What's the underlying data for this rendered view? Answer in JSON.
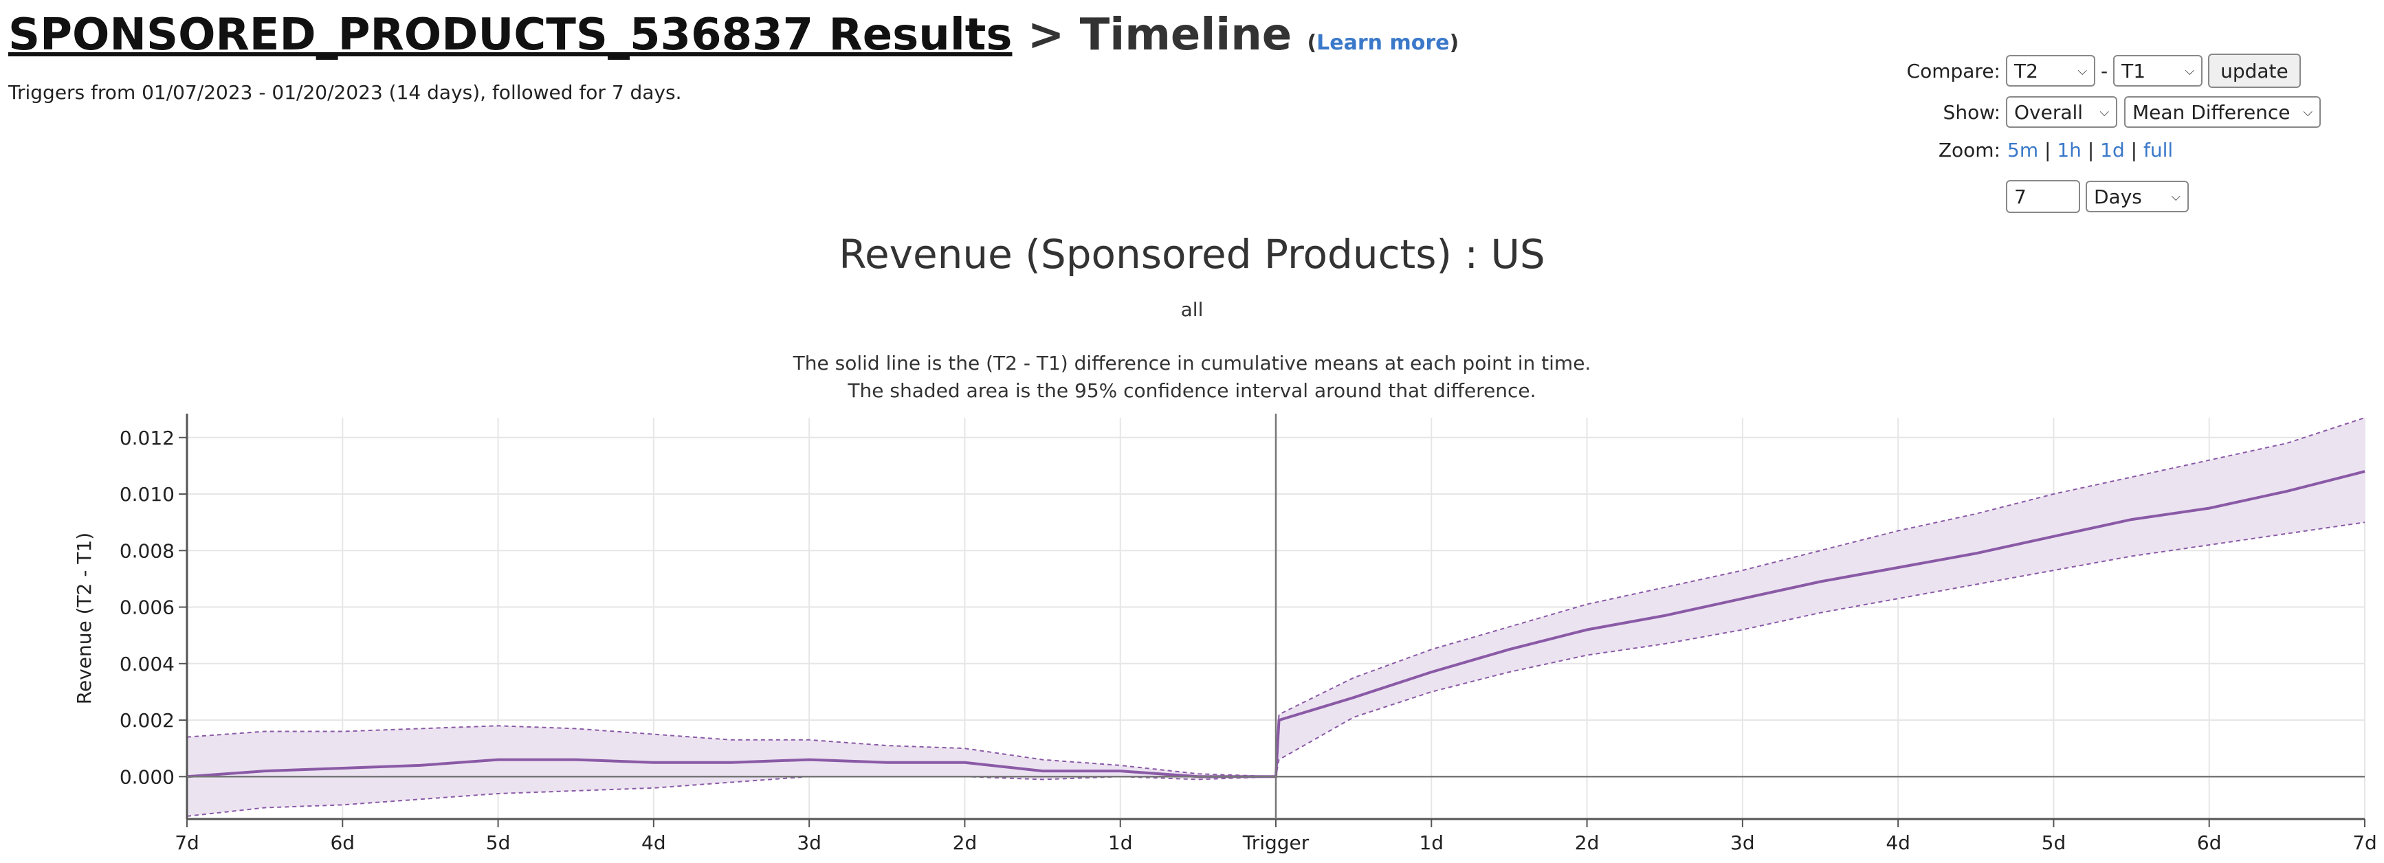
{
  "header": {
    "title_link": "SPONSORED_PRODUCTS_536837 Results",
    "title_rest": " > Timeline ",
    "learn_open": "(",
    "learn_more": "Learn more",
    "learn_close": ")",
    "subtitle": "Triggers from 01/07/2023 - 01/20/2023 (14 days), followed for 7 days."
  },
  "controls": {
    "compare_label": "Compare:",
    "compare_a": "T2",
    "compare_sep": "-",
    "compare_b": "T1",
    "update_label": "update",
    "show_label": "Show:",
    "show_scope": "Overall",
    "show_metric": "Mean Difference",
    "zoom_label": "Zoom:",
    "zoom_options": [
      "5m",
      "1h",
      "1d",
      "full"
    ],
    "zoom_sep": "|",
    "range_value": "7",
    "range_unit": "Days"
  },
  "chart_data": {
    "type": "line",
    "title": "Revenue (Sponsored Products) : US",
    "subtitle": "all",
    "description": [
      "The solid line is the (T2 - T1) difference in cumulative means at each point in time.",
      "The shaded area is the 95% confidence interval around that difference."
    ],
    "ylabel": "Revenue (T2 - T1)",
    "xlabel": "",
    "x_ticks": [
      "7d",
      "6d",
      "5d",
      "4d",
      "3d",
      "2d",
      "1d",
      "Trigger",
      "1d",
      "2d",
      "3d",
      "4d",
      "5d",
      "6d",
      "7d"
    ],
    "x_range_days": [
      -7,
      7
    ],
    "y_ticks": [
      0.0,
      0.002,
      0.004,
      0.006,
      0.008,
      0.01,
      0.012
    ],
    "ylim": [
      -0.0015,
      0.0127
    ],
    "grid": true,
    "colors": {
      "line": "#8a5aa6",
      "band": "#ece3f1",
      "band_edge": "#8a5aa6",
      "axis": "#555555",
      "grid": "#e6e6e6"
    },
    "series": [
      {
        "x": [
          -7,
          -6.5,
          -6,
          -5.5,
          -5,
          -4.5,
          -4,
          -3.5,
          -3,
          -2.5,
          -2,
          -1.5,
          -1,
          -0.5,
          0,
          0.02,
          0.5,
          1,
          1.5,
          2,
          2.5,
          3,
          3.5,
          4,
          4.5,
          5,
          5.5,
          6,
          6.5,
          7
        ],
        "y": [
          0.0,
          0.0002,
          0.0003,
          0.0004,
          0.0006,
          0.0006,
          0.0005,
          0.0005,
          0.0006,
          0.0005,
          0.0005,
          0.0002,
          0.0002,
          0.0,
          0.0,
          0.002,
          0.0028,
          0.0037,
          0.0045,
          0.0052,
          0.0057,
          0.0063,
          0.0069,
          0.0074,
          0.0079,
          0.0085,
          0.0091,
          0.0095,
          0.0101,
          0.0108
        ],
        "upper": [
          0.0014,
          0.0016,
          0.0016,
          0.0017,
          0.0018,
          0.0017,
          0.0015,
          0.0013,
          0.0013,
          0.0011,
          0.001,
          0.0006,
          0.0004,
          0.0001,
          0.0,
          0.0022,
          0.0035,
          0.0045,
          0.0053,
          0.0061,
          0.0067,
          0.0073,
          0.008,
          0.0087,
          0.0093,
          0.01,
          0.0106,
          0.0112,
          0.0118,
          0.0127
        ],
        "lower": [
          -0.0014,
          -0.0011,
          -0.001,
          -0.0008,
          -0.0006,
          -0.0005,
          -0.0004,
          -0.0002,
          0.0,
          0.0,
          0.0,
          -0.0001,
          0.0,
          -0.0001,
          0.0,
          0.0006,
          0.0021,
          0.003,
          0.0037,
          0.0043,
          0.0047,
          0.0052,
          0.0058,
          0.0063,
          0.0068,
          0.0073,
          0.0078,
          0.0082,
          0.0086,
          0.009
        ]
      }
    ]
  }
}
